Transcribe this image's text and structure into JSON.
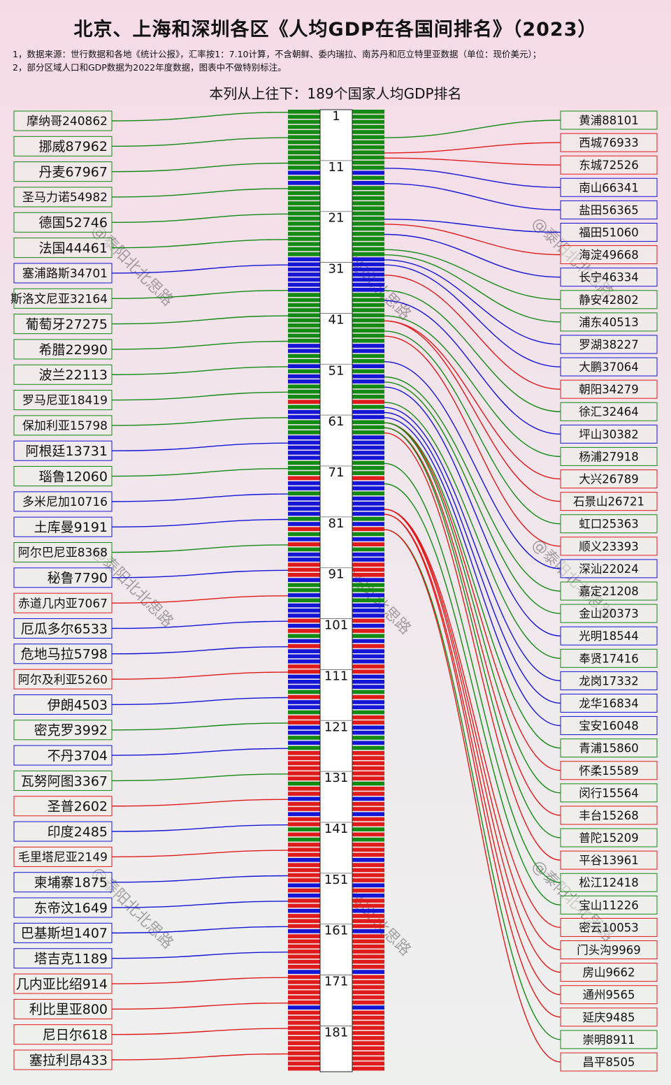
{
  "title": "北京、上海和深圳各区《人均GDP在各国间排名》（2023）",
  "notes": [
    "1，数据来源：世行数据和各地《统计公报》，汇率按1：7.10计算，不含朝鲜、委内瑞拉、南苏丹和厄立特里亚数据（单位：现价美元）；",
    "2，部分区域人口和GDP数据为2022年度数据，图表中不做特别标注。"
  ],
  "subtitle": "本列从上往下：189个国家人均GDP排名",
  "colors": {
    "beijing": "#e01b1b",
    "shanghai": "#1515d6",
    "shenzhen": "#138a13",
    "watermark": "#9aa3e0"
  },
  "watermark_text": "@泰阳北北思路",
  "chart_data": {
    "type": "slope",
    "rank_axis": {
      "min": 1,
      "max": 189,
      "tick_labels": [
        1,
        11,
        21,
        31,
        41,
        51,
        61,
        71,
        81,
        91,
        101,
        111,
        121,
        131,
        141,
        151,
        161,
        171,
        181
      ]
    },
    "countries": [
      {
        "name": "摩纳哥",
        "value": 240862,
        "color": "green",
        "rank": 1
      },
      {
        "name": "挪威",
        "value": 87962,
        "color": "green",
        "rank": 6
      },
      {
        "name": "丹麦",
        "value": 67967,
        "color": "green",
        "rank": 11
      },
      {
        "name": "圣马力诺",
        "value": 54982,
        "color": "green",
        "rank": 16
      },
      {
        "name": "德国",
        "value": 52746,
        "color": "green",
        "rank": 21
      },
      {
        "name": "法国",
        "value": 44461,
        "color": "green",
        "rank": 26
      },
      {
        "name": "塞浦路斯",
        "value": 34701,
        "color": "blue",
        "rank": 31
      },
      {
        "name": "斯洛文尼亚",
        "value": 32164,
        "color": "green",
        "rank": 36
      },
      {
        "name": "葡萄牙",
        "value": 27275,
        "color": "green",
        "rank": 41
      },
      {
        "name": "希腊",
        "value": 22990,
        "color": "green",
        "rank": 46
      },
      {
        "name": "波兰",
        "value": 22113,
        "color": "green",
        "rank": 51
      },
      {
        "name": "罗马尼亚",
        "value": 18419,
        "color": "green",
        "rank": 56
      },
      {
        "name": "保加利亚",
        "value": 15798,
        "color": "green",
        "rank": 61
      },
      {
        "name": "阿根廷",
        "value": 13731,
        "color": "blue",
        "rank": 66
      },
      {
        "name": "瑙鲁",
        "value": 12060,
        "color": "green",
        "rank": 71
      },
      {
        "name": "多米尼加",
        "value": 10716,
        "color": "blue",
        "rank": 76
      },
      {
        "name": "土库曼",
        "value": 9191,
        "color": "blue",
        "rank": 81
      },
      {
        "name": "阿尔巴尼亚",
        "value": 8368,
        "color": "green",
        "rank": 86
      },
      {
        "name": "秘鲁",
        "value": 7790,
        "color": "blue",
        "rank": 91
      },
      {
        "name": "赤道几内亚",
        "value": 7067,
        "color": "red",
        "rank": 96
      },
      {
        "name": "厄瓜多尔",
        "value": 6533,
        "color": "blue",
        "rank": 101
      },
      {
        "name": "危地马拉",
        "value": 5798,
        "color": "blue",
        "rank": 106
      },
      {
        "name": "阿尔及利亚",
        "value": 5260,
        "color": "red",
        "rank": 111
      },
      {
        "name": "伊朗",
        "value": 4503,
        "color": "blue",
        "rank": 116
      },
      {
        "name": "密克罗",
        "value": 3992,
        "color": "green",
        "rank": 121
      },
      {
        "name": "不丹",
        "value": 3704,
        "color": "blue",
        "rank": 126
      },
      {
        "name": "瓦努阿图",
        "value": 3367,
        "color": "green",
        "rank": 131
      },
      {
        "name": "圣普",
        "value": 2602,
        "color": "red",
        "rank": 136
      },
      {
        "name": "印度",
        "value": 2485,
        "color": "blue",
        "rank": 141
      },
      {
        "name": "毛里塔尼亚",
        "value": 2149,
        "color": "red",
        "rank": 146
      },
      {
        "name": "柬埔寨",
        "value": 1875,
        "color": "blue",
        "rank": 151
      },
      {
        "name": "东帝汶",
        "value": 1649,
        "color": "blue",
        "rank": 156
      },
      {
        "name": "巴基斯坦",
        "value": 1407,
        "color": "blue",
        "rank": 161
      },
      {
        "name": "塔吉克",
        "value": 1189,
        "color": "blue",
        "rank": 166
      },
      {
        "name": "几内亚比绍",
        "value": 914,
        "color": "red",
        "rank": 171
      },
      {
        "name": "利比里亚",
        "value": 800,
        "color": "red",
        "rank": 176
      },
      {
        "name": "尼日尔",
        "value": 618,
        "color": "red",
        "rank": 181
      },
      {
        "name": "塞拉利昂",
        "value": 433,
        "color": "red",
        "rank": 186
      }
    ],
    "districts": [
      {
        "name": "黄浦",
        "value": 88101,
        "color": "green",
        "rank": 6
      },
      {
        "name": "西城",
        "value": 76933,
        "color": "red",
        "rank": 9
      },
      {
        "name": "东城",
        "value": 72526,
        "color": "red",
        "rank": 10
      },
      {
        "name": "南山",
        "value": 66341,
        "color": "blue",
        "rank": 12
      },
      {
        "name": "盐田",
        "value": 56365,
        "color": "blue",
        "rank": 15
      },
      {
        "name": "福田",
        "value": 51060,
        "color": "blue",
        "rank": 22
      },
      {
        "name": "海淀",
        "value": 49668,
        "color": "red",
        "rank": 23
      },
      {
        "name": "长宁",
        "value": 46334,
        "color": "blue",
        "rank": 25
      },
      {
        "name": "静安",
        "value": 42802,
        "color": "green",
        "rank": 28
      },
      {
        "name": "浦东",
        "value": 40513,
        "color": "green",
        "rank": 29
      },
      {
        "name": "罗湖",
        "value": 38227,
        "color": "blue",
        "rank": 30
      },
      {
        "name": "大鹏",
        "value": 37064,
        "color": "blue",
        "rank": 31
      },
      {
        "name": "朝阳",
        "value": 34279,
        "color": "red",
        "rank": 33
      },
      {
        "name": "徐汇",
        "value": 32464,
        "color": "green",
        "rank": 36
      },
      {
        "name": "坪山",
        "value": 30382,
        "color": "blue",
        "rank": 38
      },
      {
        "name": "杨浦",
        "value": 27918,
        "color": "green",
        "rank": 41
      },
      {
        "name": "大兴",
        "value": 26789,
        "color": "red",
        "rank": 42
      },
      {
        "name": "石景山",
        "value": 26721,
        "color": "red",
        "rank": 42
      },
      {
        "name": "虹口",
        "value": 25363,
        "color": "green",
        "rank": 44
      },
      {
        "name": "顺义",
        "value": 23393,
        "color": "red",
        "rank": 45
      },
      {
        "name": "深汕",
        "value": 22024,
        "color": "blue",
        "rank": 50
      },
      {
        "name": "嘉定",
        "value": 21208,
        "color": "green",
        "rank": 53
      },
      {
        "name": "金山",
        "value": 20373,
        "color": "green",
        "rank": 54
      },
      {
        "name": "光明",
        "value": 18544,
        "color": "blue",
        "rank": 55
      },
      {
        "name": "奉贤",
        "value": 17416,
        "color": "green",
        "rank": 58
      },
      {
        "name": "龙岗",
        "value": 17332,
        "color": "blue",
        "rank": 59
      },
      {
        "name": "龙华",
        "value": 16834,
        "color": "blue",
        "rank": 60
      },
      {
        "name": "宝安",
        "value": 16048,
        "color": "blue",
        "rank": 61
      },
      {
        "name": "青浦",
        "value": 15860,
        "color": "green",
        "rank": 62
      },
      {
        "name": "怀柔",
        "value": 15589,
        "color": "red",
        "rank": 62
      },
      {
        "name": "闵行",
        "value": 15564,
        "color": "green",
        "rank": 62
      },
      {
        "name": "丰台",
        "value": 15268,
        "color": "red",
        "rank": 63
      },
      {
        "name": "普陀",
        "value": 15209,
        "color": "green",
        "rank": 63
      },
      {
        "name": "平谷",
        "value": 13961,
        "color": "red",
        "rank": 64
      },
      {
        "name": "松江",
        "value": 12418,
        "color": "green",
        "rank": 70
      },
      {
        "name": "宝山",
        "value": 11226,
        "color": "green",
        "rank": 74
      },
      {
        "name": "密云",
        "value": 10053,
        "color": "red",
        "rank": 79
      },
      {
        "name": "门头沟",
        "value": 9969,
        "color": "red",
        "rank": 79
      },
      {
        "name": "房山",
        "value": 9662,
        "color": "red",
        "rank": 79
      },
      {
        "name": "通州",
        "value": 9565,
        "color": "red",
        "rank": 80
      },
      {
        "name": "延庆",
        "value": 9485,
        "color": "red",
        "rank": 80
      },
      {
        "name": "崇明",
        "value": 8911,
        "color": "green",
        "rank": 83
      },
      {
        "name": "昌平",
        "value": 8505,
        "color": "red",
        "rank": 83
      }
    ],
    "stripe_pattern": "GGGGGGGGGGGGBGBGGGGGGGGGGGGGGBBBBBBBGGGGGGGGGGBBGGBGBBGGGRGBBGGGBBBBBGGGRBBGBBBBGBRGBRGBBRRRBGGBGBBBRBRGBRBBBRRBBBGRBBGRRBBGBGRRRRRRGRRBRRBRRGRGRRRBRRRRBRBRRBRRRBRRRRRRRBRRRRRRBRRRRRR"
  }
}
